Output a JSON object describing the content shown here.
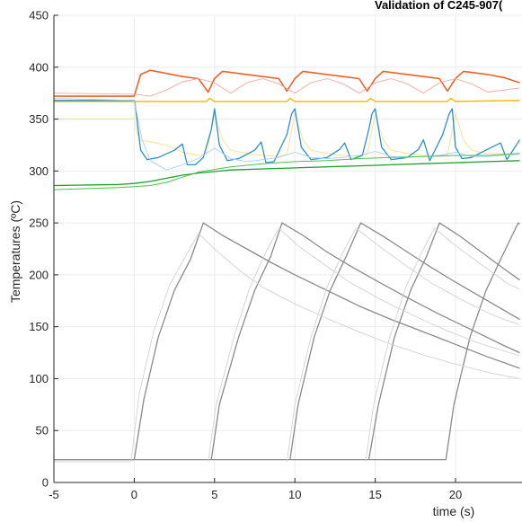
{
  "chart_data": {
    "type": "line",
    "title": "Validation of C245-907(",
    "xlabel": "time (s)",
    "ylabel": "Temperatures (ºC)",
    "xlim": [
      -5,
      24
    ],
    "ylim": [
      0,
      450
    ],
    "xticks": [
      -5,
      0,
      5,
      10,
      15,
      20
    ],
    "yticks": [
      0,
      50,
      100,
      150,
      200,
      250,
      300,
      350,
      400,
      450
    ],
    "grid": true,
    "series": [
      {
        "color": "#e8632a",
        "width": 1.6,
        "x": [
          -5,
          0,
          0.4,
          1,
          2,
          3,
          4,
          4.6,
          5,
          5.5,
          7,
          8,
          9,
          9.5,
          10,
          10.5,
          12,
          13,
          14,
          14.5,
          15,
          15.5,
          17,
          18,
          19,
          19.5,
          20,
          20.5,
          22,
          23,
          24
        ],
        "y": [
          372,
          372,
          393,
          397,
          394,
          391,
          389,
          376,
          389,
          396,
          393,
          391,
          389,
          377,
          389,
          396,
          393,
          391,
          389,
          377,
          389,
          396,
          393,
          391,
          389,
          377,
          389,
          396,
          393,
          390,
          385
        ]
      },
      {
        "color": "#f3a9a0",
        "width": 0.9,
        "x": [
          -5,
          0,
          1,
          2,
          3,
          4,
          5,
          6,
          7,
          8,
          9,
          10,
          11,
          12,
          13,
          14,
          15,
          16,
          17,
          18,
          19,
          20,
          21,
          22,
          24
        ],
        "y": [
          375,
          374,
          372,
          378,
          386,
          389,
          385,
          375,
          385,
          389,
          384,
          375,
          385,
          389,
          384,
          375,
          385,
          389,
          384,
          375,
          385,
          389,
          384,
          376,
          380
        ]
      },
      {
        "color": "#f2b705",
        "width": 1.4,
        "x": [
          -5,
          0,
          4.5,
          4.7,
          5,
          9.5,
          9.7,
          10,
          14.5,
          14.7,
          15,
          19.5,
          19.7,
          20,
          24
        ],
        "y": [
          367,
          367,
          367,
          370,
          367,
          367,
          370,
          367,
          367,
          370,
          367,
          367,
          370,
          367,
          368
        ]
      },
      {
        "color": "#f9e08a",
        "width": 0.9,
        "x": [
          -5,
          0,
          0.3,
          1,
          2,
          3,
          4,
          4.5,
          5,
          5.5,
          6,
          7,
          8,
          9,
          9.5,
          10,
          10.5,
          11,
          12,
          13,
          14,
          14.5,
          15,
          15.5,
          16,
          17,
          18,
          19,
          19.5,
          20,
          20.5,
          21,
          22,
          24
        ],
        "y": [
          350,
          350,
          330,
          328,
          325,
          318,
          315,
          316,
          355,
          330,
          320,
          317,
          315,
          314,
          316,
          355,
          330,
          320,
          317,
          315,
          314,
          316,
          355,
          330,
          320,
          317,
          315,
          314,
          316,
          355,
          330,
          320,
          317,
          316
        ]
      },
      {
        "color": "#2b8fcf",
        "width": 1.3,
        "x": [
          -5,
          0,
          0.05,
          0.4,
          0.8,
          1.5,
          2.5,
          3.0,
          3.3,
          3.8,
          4.3,
          4.8,
          5.0,
          5.3,
          5.8,
          6.5,
          7.5,
          7.9,
          8.2,
          8.7,
          9.5,
          9.8,
          10.0,
          10.4,
          11.0,
          12.0,
          12.8,
          13.1,
          13.5,
          14.2,
          14.6,
          14.8,
          15.0,
          15.4,
          16.0,
          17.0,
          17.7,
          18.0,
          18.4,
          19.2,
          19.6,
          19.8,
          20.0,
          20.4,
          21.0,
          22.0,
          22.8,
          23.2,
          24
        ],
        "y": [
          368,
          368,
          365,
          320,
          311,
          313,
          320,
          326,
          306,
          306,
          313,
          340,
          360,
          325,
          310,
          312,
          320,
          328,
          308,
          309,
          335,
          355,
          360,
          323,
          311,
          313,
          321,
          327,
          311,
          315,
          340,
          355,
          360,
          323,
          311,
          313,
          321,
          330,
          310,
          335,
          355,
          360,
          323,
          312,
          313,
          321,
          327,
          311,
          330
        ]
      },
      {
        "color": "#a8d3ee",
        "width": 0.9,
        "x": [
          -5,
          0,
          0.5,
          1,
          2,
          3,
          4,
          5,
          6,
          7,
          8,
          9,
          10,
          11,
          12,
          13,
          14,
          15,
          16,
          17,
          18,
          19,
          20,
          21,
          22,
          24
        ],
        "y": [
          370,
          368,
          330,
          310,
          301,
          306,
          312,
          322,
          312,
          309,
          311,
          313,
          318,
          313,
          312,
          313,
          315,
          319,
          314,
          313,
          314,
          315,
          318,
          314,
          314,
          316
        ]
      },
      {
        "color": "#1e9f2f",
        "width": 1.3,
        "x": [
          -5,
          -1,
          0,
          1,
          2,
          3,
          4,
          6,
          8,
          10,
          12,
          14,
          16,
          18,
          20,
          22,
          24
        ],
        "y": [
          286,
          287,
          288,
          290,
          293,
          296,
          298,
          301,
          302,
          303,
          304,
          305,
          306,
          307,
          308,
          309,
          310
        ]
      },
      {
        "color": "#4fbf55",
        "width": 1.0,
        "x": [
          -5,
          -1,
          0,
          1,
          2,
          3,
          4,
          6,
          8,
          10,
          12,
          14,
          16,
          18,
          20,
          22,
          24
        ],
        "y": [
          282,
          284,
          285,
          286,
          289,
          294,
          299,
          304,
          307,
          309,
          310,
          312,
          313,
          314,
          315,
          315,
          317
        ]
      },
      {
        "color": "#8a8a8a",
        "width": 1.3,
        "x": [
          -5,
          0,
          0.6,
          1.5,
          2.5,
          3.5,
          4.3,
          5.5,
          7,
          8.5,
          10,
          12,
          14,
          16,
          18,
          20,
          22,
          24
        ],
        "y": [
          22,
          22,
          80,
          140,
          185,
          215,
          250,
          238,
          225,
          212,
          200,
          185,
          170,
          157,
          145,
          133,
          121,
          110
        ]
      },
      {
        "color": "#8a8a8a",
        "width": 1.3,
        "x": [
          4.8,
          5.3,
          6.5,
          7.5,
          8.5,
          9.2,
          10.5,
          12,
          13.5,
          15,
          17,
          19,
          21,
          23,
          24
        ],
        "y": [
          22,
          75,
          140,
          185,
          218,
          250,
          238,
          222,
          208,
          195,
          178,
          162,
          147,
          132,
          125
        ]
      },
      {
        "color": "#8a8a8a",
        "width": 1.3,
        "x": [
          9.7,
          10.2,
          11.2,
          12.2,
          13.2,
          14.1,
          15.5,
          17,
          18.5,
          20,
          22,
          24
        ],
        "y": [
          22,
          75,
          140,
          185,
          218,
          250,
          237,
          222,
          207,
          193,
          175,
          157
        ]
      },
      {
        "color": "#8a8a8a",
        "width": 1.3,
        "x": [
          14.6,
          15.2,
          16.2,
          17.2,
          18.2,
          19.0,
          20.3,
          21.6,
          23,
          24
        ],
        "y": [
          22,
          75,
          140,
          185,
          218,
          250,
          237,
          222,
          206,
          195
        ]
      },
      {
        "color": "#8a8a8a",
        "width": 1.3,
        "x": [
          -5,
          19.4,
          19.9,
          20.9,
          21.9,
          22.9,
          23.9,
          24
        ],
        "y": [
          22,
          22,
          75,
          140,
          185,
          218,
          250,
          249
        ]
      },
      {
        "color": "#d3d3d3",
        "width": 0.9,
        "x": [
          -5,
          -0.2,
          0.3,
          1.2,
          2.2,
          3.2,
          4.0,
          5.0,
          6.5,
          8,
          10,
          12,
          14,
          16,
          18,
          20,
          22,
          24
        ],
        "y": [
          20,
          20,
          85,
          145,
          190,
          218,
          240,
          225,
          205,
          188,
          172,
          158,
          145,
          133,
          123,
          114,
          106,
          100
        ]
      },
      {
        "color": "#d3d3d3",
        "width": 0.9,
        "x": [
          4.6,
          5.1,
          6.2,
          7.2,
          8.2,
          9.0,
          10.2,
          11.8,
          13.5,
          15.5,
          17.5,
          19.5,
          21.5,
          24
        ],
        "y": [
          20,
          75,
          140,
          188,
          222,
          245,
          228,
          210,
          192,
          175,
          160,
          146,
          134,
          122
        ]
      },
      {
        "color": "#d3d3d3",
        "width": 0.9,
        "x": [
          9.5,
          10.0,
          11.0,
          12.0,
          13.0,
          13.8,
          15.2,
          16.8,
          18.5,
          20.5,
          22.5,
          24
        ],
        "y": [
          20,
          75,
          140,
          188,
          222,
          245,
          228,
          210,
          192,
          175,
          160,
          152
        ]
      },
      {
        "color": "#d3d3d3",
        "width": 0.9,
        "x": [
          14.4,
          14.9,
          15.9,
          16.9,
          17.9,
          18.7,
          20.0,
          21.6,
          23.2,
          24
        ],
        "y": [
          20,
          75,
          140,
          188,
          222,
          245,
          228,
          210,
          192,
          186
        ]
      }
    ]
  }
}
